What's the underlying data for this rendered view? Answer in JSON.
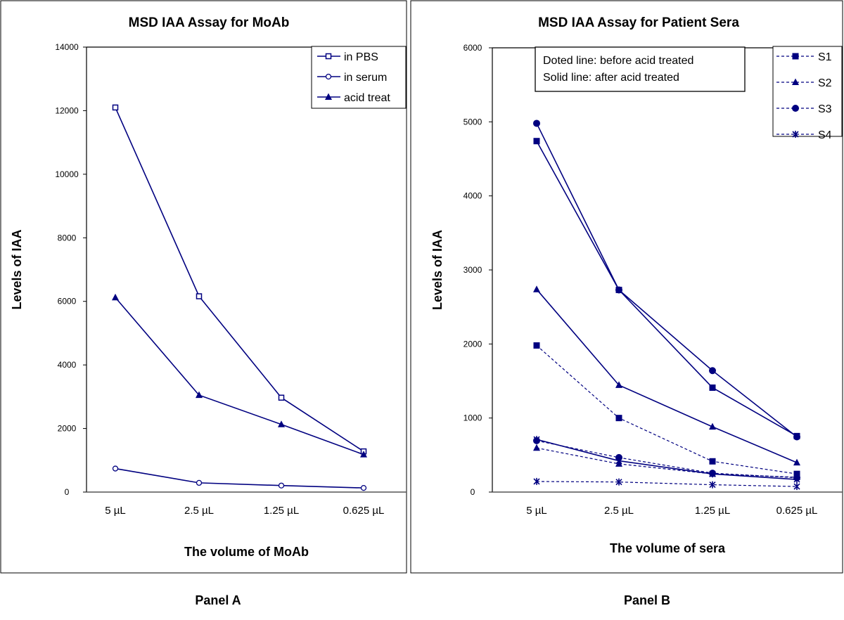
{
  "chart_data": [
    {
      "type": "line",
      "title": "MSD IAA Assay for MoAb",
      "xlabel": "The volume of MoAb",
      "ylabel": "Levels of IAA",
      "panel_label": "Panel A",
      "categories": [
        "5 µL",
        "2.5 µL",
        "1.25 µL",
        "0.625 µL"
      ],
      "ylim": [
        0,
        14000
      ],
      "yticks": [
        0,
        2000,
        4000,
        6000,
        8000,
        10000,
        12000,
        14000
      ],
      "grid": false,
      "legend_position": "top-right",
      "series": [
        {
          "name": "in PBS",
          "marker": "square-open",
          "dashed": false,
          "values": [
            12100,
            6160,
            2970,
            1280
          ]
        },
        {
          "name": "in serum",
          "marker": "circle-open",
          "dashed": false,
          "values": [
            740,
            290,
            205,
            130
          ]
        },
        {
          "name": "acid treat",
          "marker": "triangle",
          "dashed": false,
          "values": [
            6120,
            3050,
            2130,
            1180
          ]
        }
      ],
      "color": "#000080"
    },
    {
      "type": "line",
      "title": "MSD IAA Assay for Patient Sera",
      "xlabel": "The volume of sera",
      "ylabel": "Levels of IAA",
      "panel_label": "Panel B",
      "categories": [
        "5 µL",
        "2.5 µL",
        "1.25 µL",
        "0.625 µL"
      ],
      "ylim": [
        0,
        6000
      ],
      "yticks": [
        0,
        1000,
        2000,
        3000,
        4000,
        5000,
        6000
      ],
      "grid": false,
      "legend_position": "top-right",
      "annotation": [
        "Doted line: before acid treated",
        "Solid line:  after acid treated"
      ],
      "series": [
        {
          "name": "S1",
          "marker": "square",
          "dashed": true,
          "values": [
            1980,
            1000,
            415,
            245
          ],
          "legend": true
        },
        {
          "name": "S2",
          "marker": "triangle",
          "dashed": true,
          "values": [
            596,
            381,
            245,
            200
          ],
          "legend": true
        },
        {
          "name": "S3",
          "marker": "circle",
          "dashed": true,
          "values": [
            694,
            466,
            255,
            194
          ],
          "legend": true
        },
        {
          "name": "S4",
          "marker": "asterisk",
          "dashed": true,
          "values": [
            143,
            136,
            99,
            75
          ],
          "legend": true
        },
        {
          "name": "S1",
          "marker": "square",
          "dashed": false,
          "values": [
            4740,
            2730,
            1410,
            756
          ],
          "legend": false
        },
        {
          "name": "S2",
          "marker": "triangle",
          "dashed": false,
          "values": [
            2737,
            1444,
            882,
            398
          ],
          "legend": false
        },
        {
          "name": "S3",
          "marker": "circle",
          "dashed": false,
          "values": [
            4980,
            2730,
            1640,
            745
          ],
          "legend": false
        },
        {
          "name": "S4",
          "marker": "asterisk",
          "dashed": false,
          "values": [
            711,
            422,
            245,
            170
          ],
          "legend": false
        }
      ],
      "color": "#000080"
    }
  ]
}
